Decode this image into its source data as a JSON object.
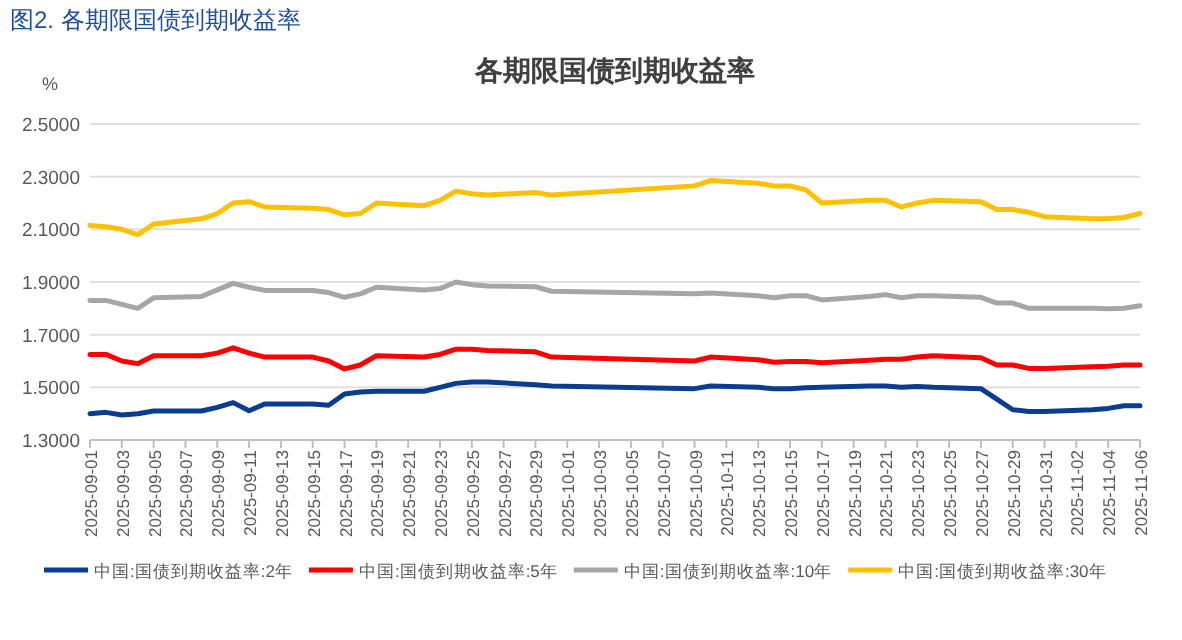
{
  "chart_data": {
    "type": "line",
    "title": "各期限国债到期收益率",
    "ylabel": "%",
    "annotations": [
      "图2. 各期限国债到期收益率"
    ],
    "x": [
      "2025-09-01",
      "2025-09-02",
      "2025-09-03",
      "2025-09-04",
      "2025-09-05",
      "2025-09-08",
      "2025-09-09",
      "2025-09-10",
      "2025-09-11",
      "2025-09-12",
      "2025-09-15",
      "2025-09-16",
      "2025-09-17",
      "2025-09-18",
      "2025-09-19",
      "2025-09-22",
      "2025-09-23",
      "2025-09-24",
      "2025-09-25",
      "2025-09-26",
      "2025-09-29",
      "2025-09-30",
      "2025-10-09",
      "2025-10-10",
      "2025-10-13",
      "2025-10-14",
      "2025-10-15",
      "2025-10-16",
      "2025-10-17",
      "2025-10-20",
      "2025-10-21",
      "2025-10-22",
      "2025-10-23",
      "2025-10-24",
      "2025-10-27",
      "2025-10-28",
      "2025-10-29",
      "2025-10-30",
      "2025-10-31",
      "2025-11-03",
      "2025-11-04",
      "2025-11-05",
      "2025-11-06"
    ],
    "series": [
      {
        "name": "中国:国债到期收益率:2年",
        "color": "#0a3d91",
        "values": [
          1.4,
          1.405,
          1.395,
          1.4,
          1.41,
          1.41,
          1.424,
          1.442,
          1.411,
          1.437,
          1.437,
          1.432,
          1.475,
          1.482,
          1.485,
          1.485,
          1.5,
          1.515,
          1.52,
          1.52,
          1.51,
          1.505,
          1.495,
          1.505,
          1.5,
          1.495,
          1.495,
          1.498,
          1.5,
          1.505,
          1.505,
          1.5,
          1.503,
          1.5,
          1.495,
          1.455,
          1.415,
          1.408,
          1.408,
          1.415,
          1.42,
          1.43,
          1.43
        ]
      },
      {
        "name": "中国:国债到期收益率:5年",
        "color": "#ff0000",
        "values": [
          1.625,
          1.625,
          1.6,
          1.59,
          1.62,
          1.62,
          1.63,
          1.65,
          1.63,
          1.615,
          1.615,
          1.6,
          1.57,
          1.585,
          1.62,
          1.615,
          1.625,
          1.645,
          1.645,
          1.64,
          1.635,
          1.615,
          1.6,
          1.615,
          1.605,
          1.595,
          1.598,
          1.598,
          1.593,
          1.603,
          1.607,
          1.607,
          1.615,
          1.62,
          1.612,
          1.585,
          1.585,
          1.572,
          1.572,
          1.578,
          1.58,
          1.585,
          1.585
        ]
      },
      {
        "name": "中国:国债到期收益率:10年",
        "color": "#a6a6a6",
        "values": [
          1.83,
          1.83,
          1.815,
          1.8,
          1.84,
          1.845,
          1.87,
          1.895,
          1.88,
          1.868,
          1.868,
          1.86,
          1.842,
          1.855,
          1.88,
          1.87,
          1.875,
          1.9,
          1.89,
          1.885,
          1.882,
          1.865,
          1.855,
          1.858,
          1.848,
          1.84,
          1.848,
          1.848,
          1.832,
          1.845,
          1.852,
          1.84,
          1.848,
          1.848,
          1.842,
          1.82,
          1.82,
          1.8,
          1.8,
          1.8,
          1.798,
          1.8,
          1.81
        ]
      },
      {
        "name": "中国:国债到期收益率:30年",
        "color": "#ffc000",
        "values": [
          2.115,
          2.11,
          2.1,
          2.08,
          2.12,
          2.14,
          2.16,
          2.2,
          2.205,
          2.185,
          2.18,
          2.175,
          2.155,
          2.16,
          2.2,
          2.19,
          2.21,
          2.245,
          2.235,
          2.23,
          2.24,
          2.23,
          2.265,
          2.285,
          2.275,
          2.265,
          2.265,
          2.25,
          2.2,
          2.21,
          2.21,
          2.185,
          2.2,
          2.21,
          2.205,
          2.175,
          2.175,
          2.165,
          2.148,
          2.14,
          2.14,
          2.145,
          2.16
        ]
      }
    ],
    "xlim": [
      "2025-09-01",
      "2025-11-06"
    ],
    "xticks": [
      "2025-09-01",
      "2025-09-03",
      "2025-09-05",
      "2025-09-07",
      "2025-09-09",
      "2025-09-11",
      "2025-09-13",
      "2025-09-15",
      "2025-09-17",
      "2025-09-19",
      "2025-09-21",
      "2025-09-23",
      "2025-09-25",
      "2025-09-27",
      "2025-09-29",
      "2025-10-01",
      "2025-10-03",
      "2025-10-05",
      "2025-10-07",
      "2025-10-09",
      "2025-10-11",
      "2025-10-13",
      "2025-10-15",
      "2025-10-17",
      "2025-10-19",
      "2025-10-21",
      "2025-10-23",
      "2025-10-25",
      "2025-10-27",
      "2025-10-29",
      "2025-10-31",
      "2025-11-02",
      "2025-11-04",
      "2025-11-06"
    ],
    "ylim": [
      1.3,
      2.5
    ],
    "yticks": [
      {
        "value": 1.3,
        "label": "1.3000"
      },
      {
        "value": 1.5,
        "label": "1.5000"
      },
      {
        "value": 1.7,
        "label": "1.7000"
      },
      {
        "value": 1.9,
        "label": "1.9000"
      },
      {
        "value": 2.1,
        "label": "2.1000"
      },
      {
        "value": 2.3,
        "label": "2.3000"
      },
      {
        "value": 2.5,
        "label": "2.5000"
      }
    ],
    "grid": "y",
    "legend": "bottom",
    "marker": "none",
    "line_style": "solid"
  }
}
